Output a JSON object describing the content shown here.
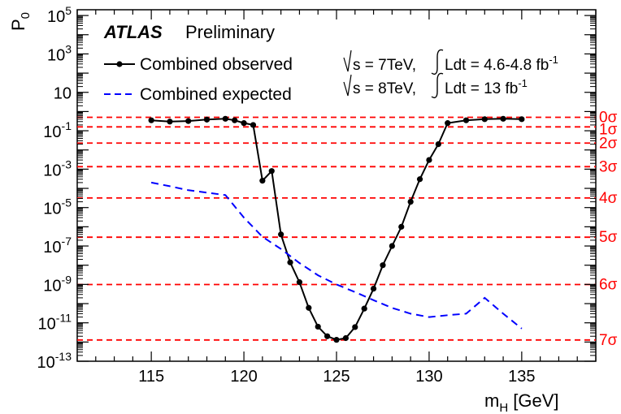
{
  "chart_data": {
    "type": "line",
    "title": "",
    "brand": "ATLAS",
    "brand_suffix": "Preliminary",
    "xlabel": "m",
    "xlabel_sub": "H",
    "xlabel_unit": " [GeV]",
    "ylabel": "P",
    "ylabel_sub": "0",
    "xlim": [
      111,
      139
    ],
    "ylim_log10": [
      -13,
      5.3
    ],
    "yscale": "log",
    "grid": false,
    "x_ticks": [
      115,
      120,
      125,
      130,
      135
    ],
    "y_ticks": [
      {
        "exp": 5,
        "label": "10",
        "sup": "5"
      },
      {
        "exp": 3,
        "label": "10",
        "sup": "3"
      },
      {
        "exp": 1,
        "label": "10",
        "sup": ""
      },
      {
        "exp": -1,
        "label": "10",
        "sup": "-1"
      },
      {
        "exp": -3,
        "label": "10",
        "sup": "-3"
      },
      {
        "exp": -5,
        "label": "10",
        "sup": "-5"
      },
      {
        "exp": -7,
        "label": "10",
        "sup": "-7"
      },
      {
        "exp": -9,
        "label": "10",
        "sup": "-9"
      },
      {
        "exp": -11,
        "label": "10",
        "sup": "-11"
      },
      {
        "exp": -13,
        "label": "10",
        "sup": "-13"
      }
    ],
    "lumi_text": [
      {
        "pre": "s = 7TeV, ",
        "post": "Ldt = 4.6-4.8 fb",
        "sup": "-1"
      },
      {
        "pre": "s = 8TeV, ",
        "post": "Ldt = 13 fb",
        "sup": "-1"
      }
    ],
    "legend_position": "top-left",
    "sigma_lines": [
      {
        "label": "0σ",
        "p0": 0.5
      },
      {
        "label": "1σ",
        "p0": 0.1587
      },
      {
        "label": "2σ",
        "p0": 0.02275
      },
      {
        "label": "3σ",
        "p0": 0.00135
      },
      {
        "label": "4σ",
        "p0": 3.17e-05
      },
      {
        "label": "5σ",
        "p0": 2.87e-07
      },
      {
        "label": "6σ",
        "p0": 9.87e-10
      },
      {
        "label": "7σ",
        "p0": 1.28e-12
      }
    ],
    "series": [
      {
        "name": "Combined observed",
        "style": "solid-markers",
        "color": "#000000",
        "x": [
          115,
          116,
          117,
          118,
          119,
          119.5,
          120,
          120.5,
          121,
          121.5,
          122,
          122.5,
          123,
          123.5,
          124,
          124.5,
          125,
          125.5,
          126,
          126.5,
          127,
          127.5,
          128,
          128.5,
          129,
          129.5,
          130,
          130.5,
          131,
          132,
          133,
          134,
          135
        ],
        "y": [
          0.35,
          0.3,
          0.32,
          0.38,
          0.42,
          0.35,
          0.25,
          0.2,
          0.00025,
          0.0008,
          4e-07,
          1.4e-08,
          1.3e-09,
          6e-11,
          6.3e-12,
          2e-12,
          1.3e-12,
          1.6e-12,
          6e-12,
          5.5e-11,
          6e-10,
          1e-08,
          1e-07,
          1e-06,
          2e-05,
          0.0003,
          0.003,
          0.02,
          0.25,
          0.35,
          0.4,
          0.42,
          0.4
        ]
      },
      {
        "name": "Combined expected",
        "style": "dashed",
        "color": "#0000ff",
        "x": [
          115,
          116,
          117,
          118,
          119,
          120,
          121,
          122,
          123,
          124,
          125,
          126,
          127,
          128,
          129,
          130,
          131,
          132,
          133,
          134,
          135
        ],
        "y": [
          0.0002,
          0.00013,
          8e-05,
          6e-05,
          4.5e-05,
          3e-06,
          3e-07,
          7e-08,
          1.3e-08,
          3e-09,
          1e-09,
          4e-10,
          1.5e-10,
          6e-11,
          3e-11,
          2e-11,
          2.5e-11,
          3e-11,
          2e-10,
          3e-11,
          5e-12
        ]
      }
    ]
  }
}
